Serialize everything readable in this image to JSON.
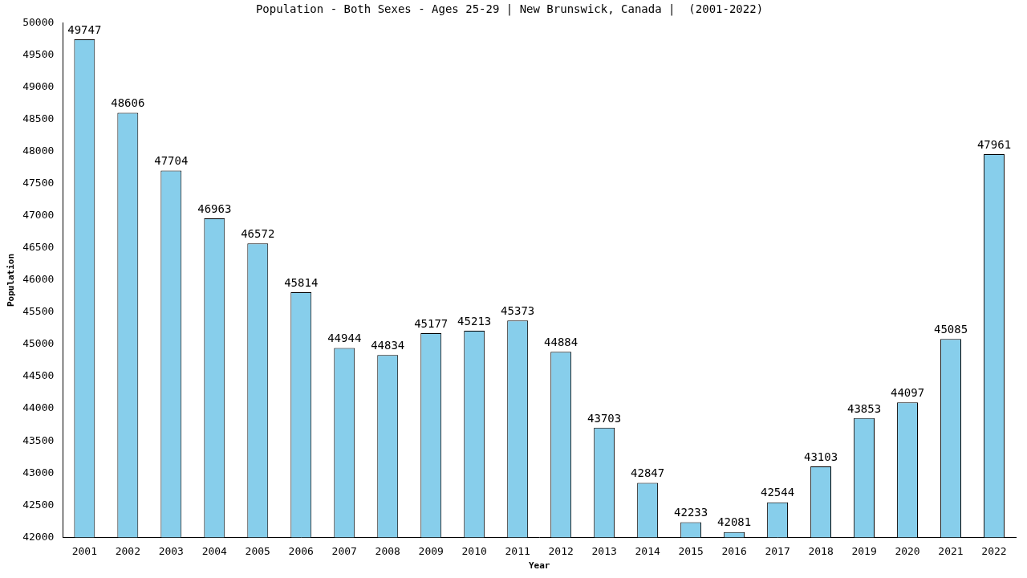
{
  "chart_data": {
    "type": "bar",
    "title": "Population - Both Sexes - Ages 25-29 | New Brunswick, Canada |  (2001-2022)",
    "x_label": "Year",
    "y_label": "Population",
    "categories": [
      "2001",
      "2002",
      "2003",
      "2004",
      "2005",
      "2006",
      "2007",
      "2008",
      "2009",
      "2010",
      "2011",
      "2012",
      "2013",
      "2014",
      "2015",
      "2016",
      "2017",
      "2018",
      "2019",
      "2020",
      "2021",
      "2022"
    ],
    "values": [
      49747,
      48606,
      47704,
      46963,
      46572,
      45814,
      44944,
      44834,
      45177,
      45213,
      45373,
      44884,
      43703,
      42847,
      42233,
      42081,
      42544,
      43103,
      43853,
      44097,
      45085,
      47961
    ],
    "color": "#87ceeb",
    "ylim": [
      42000,
      50000
    ],
    "yticks": [
      42000,
      42500,
      43000,
      43500,
      44000,
      44500,
      45000,
      45500,
      46000,
      46500,
      47000,
      47500,
      48000,
      48500,
      49000,
      49500,
      50000
    ],
    "grid": false,
    "data_labels": true
  }
}
